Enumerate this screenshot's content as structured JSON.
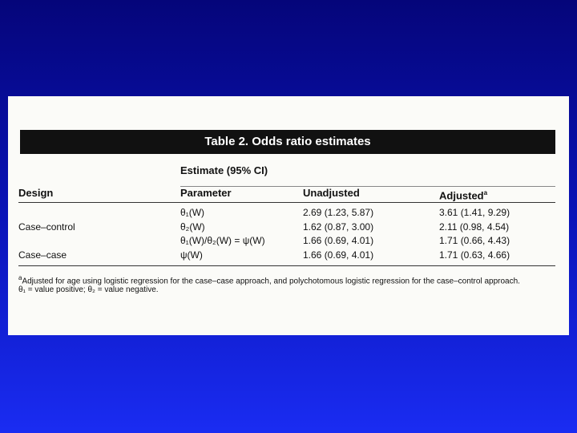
{
  "table": {
    "title": "Table 2. Odds ratio estimates",
    "spanner": "Estimate (95% CI)",
    "header": {
      "design": "Design",
      "parameter": "Parameter",
      "unadjusted": "Unadjusted",
      "adjusted": "Adjusted",
      "adjusted_marker": "a"
    },
    "groups": [
      {
        "design": "Case–control",
        "rows": [
          {
            "parameter": "θ₁(W)",
            "unadjusted": "2.69 (1.23, 5.87)",
            "adjusted": "3.61 (1.41, 9.29)"
          },
          {
            "parameter": "θ₂(W)",
            "unadjusted": "1.62 (0.87, 3.00)",
            "adjusted": "2.11 (0.98, 4.54)"
          },
          {
            "parameter": "θ₁(W)/θ₂(W) = ψ(W)",
            "unadjusted": "1.66 (0.69, 4.01)",
            "adjusted": "1.71 (0.66, 4.43)"
          }
        ]
      },
      {
        "design": "Case–case",
        "rows": [
          {
            "parameter": "ψ(W)",
            "unadjusted": "1.66 (0.69, 4.01)",
            "adjusted": "1.71 (0.63, 4.66)"
          }
        ]
      }
    ],
    "footnotes": [
      {
        "marker": "a",
        "text": "Adjusted for age using logistic regression for the case–case approach, and polychotomous logistic regression for the case–control approach."
      },
      {
        "text": "θ₁ = value positive; θ₂ = value negative."
      }
    ]
  }
}
